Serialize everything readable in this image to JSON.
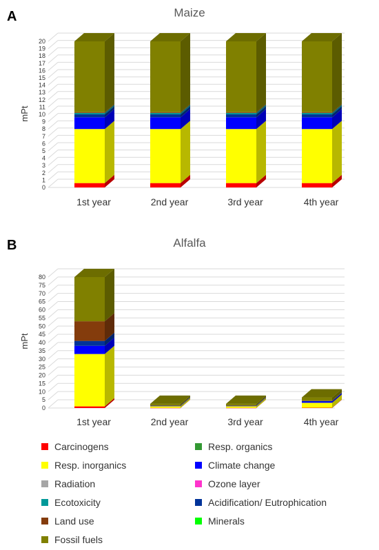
{
  "chart_data": [
    {
      "panel_label": "A",
      "type": "bar",
      "stacked": true,
      "title": "Maize",
      "ylabel": "mPt",
      "xlabel": "",
      "ylim": [
        0,
        20
      ],
      "yticks": [
        0,
        1,
        2,
        3,
        4,
        5,
        6,
        7,
        8,
        9,
        10,
        11,
        12,
        13,
        14,
        15,
        16,
        17,
        18,
        19,
        20
      ],
      "grid": true,
      "categories": [
        "1st year",
        "2nd year",
        "3rd year",
        "4th year"
      ],
      "series": [
        {
          "name": "Carcinogens",
          "values": [
            0.6,
            0.6,
            0.6,
            0.6
          ]
        },
        {
          "name": "Resp. inorganics",
          "values": [
            7.4,
            7.4,
            7.4,
            7.4
          ]
        },
        {
          "name": "Climate change",
          "values": [
            1.6,
            1.6,
            1.6,
            1.6
          ]
        },
        {
          "name": "Acidification/ Eutrophication",
          "values": [
            0.4,
            0.4,
            0.4,
            0.4
          ]
        },
        {
          "name": "Ecotoxicity",
          "values": [
            0.2,
            0.2,
            0.2,
            0.2
          ]
        },
        {
          "name": "Land use",
          "values": [
            0.1,
            0.1,
            0.1,
            0.1
          ]
        },
        {
          "name": "Fossil fuels",
          "values": [
            9.7,
            9.7,
            9.7,
            9.7
          ]
        }
      ]
    },
    {
      "panel_label": "B",
      "type": "bar",
      "stacked": true,
      "title": "Alfalfa",
      "ylabel": "mPt",
      "xlabel": "",
      "ylim": [
        0,
        80
      ],
      "yticks": [
        0,
        5,
        10,
        15,
        20,
        25,
        30,
        35,
        40,
        45,
        50,
        55,
        60,
        65,
        70,
        75,
        80
      ],
      "grid": true,
      "categories": [
        "1st year",
        "2nd year",
        "3rd year",
        "4th year"
      ],
      "series": [
        {
          "name": "Carcinogens",
          "values": [
            1,
            0.1,
            0.1,
            0.2
          ]
        },
        {
          "name": "Resp. inorganics",
          "values": [
            32,
            1,
            1,
            3
          ]
        },
        {
          "name": "Climate change",
          "values": [
            5,
            0.3,
            0.3,
            0.8
          ]
        },
        {
          "name": "Acidification/ Eutrophication",
          "values": [
            3,
            0.1,
            0.1,
            0.3
          ]
        },
        {
          "name": "Land use",
          "values": [
            12,
            0.1,
            0.1,
            0.2
          ]
        },
        {
          "name": "Fossil fuels",
          "values": [
            27,
            1,
            1,
            2
          ]
        }
      ]
    }
  ],
  "legend": {
    "items": [
      {
        "label": "Carcinogens",
        "color": "#ff0000"
      },
      {
        "label": "Resp. organics",
        "color": "#339933"
      },
      {
        "label": "Resp. inorganics",
        "color": "#ffff00"
      },
      {
        "label": "Climate change",
        "color": "#0000ff"
      },
      {
        "label": "Radiation",
        "color": "#a6a6a6"
      },
      {
        "label": "Ozone layer",
        "color": "#ff33cc"
      },
      {
        "label": "Ecotoxicity",
        "color": "#009999"
      },
      {
        "label": "Acidification/ Eutrophication",
        "color": "#003399"
      },
      {
        "label": "Land use",
        "color": "#843c0c"
      },
      {
        "label": "Minerals",
        "color": "#00ff00"
      },
      {
        "label": "Fossil fuels",
        "color": "#808000"
      }
    ]
  }
}
